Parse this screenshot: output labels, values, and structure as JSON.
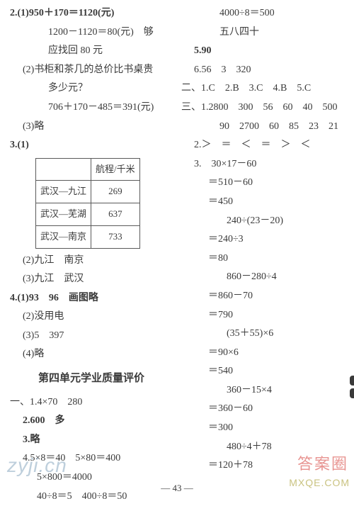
{
  "left": {
    "q2_1a": "2.(1)950＋170＝1120(元)",
    "q2_1b": "1200－1120＝80(元)　够",
    "q2_1c": "应找回 80 元",
    "q2_2a": "(2)书柜和茶几的总价比书桌贵",
    "q2_2b": "多少元？",
    "q2_2c": "706＋170－485＝391(元)",
    "q2_3": "(3)略",
    "q3_label": "3.(1)",
    "table_header_city": "",
    "table_header_dist": "航程/千米",
    "table_rows": [
      {
        "route": "武汉—九江",
        "km": "269"
      },
      {
        "route": "武汉—芜湖",
        "km": "637"
      },
      {
        "route": "武汉—南京",
        "km": "733"
      }
    ],
    "q3_2": "(2)九江　南京",
    "q3_3": "(3)九江　武汉",
    "q4_1": "4.(1)93　96　画图略",
    "q4_2": "(2)没用电",
    "q4_3": "(3)5　397",
    "q4_4": "(4)略",
    "unit_title": "第四单元学业质量评价",
    "u1_1": "一、1.4×70　280",
    "u1_2": "2.600　多",
    "u1_3": "3.略",
    "u1_4a": "4.5×8＝40　5×80＝400",
    "u1_4b": "5×800＝4000",
    "u1_4c": "40÷8＝5　400÷8＝50"
  },
  "right": {
    "r1": "4000÷8＝500",
    "r2": "五八四十",
    "r3": "5.90",
    "r4": "6.56　3　320",
    "sec2": "二、1.C　2.B　3.C　4.B　5.C",
    "sec3_1a": "三、1.2800　300　56　60　40　500",
    "sec3_1b": "90　2700　60　85　23　21",
    "sec3_2": "2.＞　＝　＜　＝　＞　＜",
    "sec3_3_head": "3.　30×17－60",
    "sec3_3_a": "＝510－60",
    "sec3_3_b": "＝450",
    "sec3_3_c": "240÷(23－20)",
    "sec3_3_d": "＝240÷3",
    "sec3_3_e": "＝80",
    "sec3_3_f": "860－280÷4",
    "sec3_3_g": "＝860－70",
    "sec3_3_h": "＝790",
    "sec3_3_i": "(35＋55)×6",
    "sec3_3_j": "＝90×6",
    "sec3_3_k": "＝540",
    "sec3_3_l": "360－15×4",
    "sec3_3_m": "＝360－60",
    "sec3_3_n": "＝300",
    "sec3_3_o": "480÷4＋78",
    "sec3_3_p": "＝120＋78"
  },
  "footer": "— 43 —",
  "watermarks": {
    "left": "zyji.cn",
    "right_a": "答案圈",
    "right_b": "MXQE.COM"
  }
}
